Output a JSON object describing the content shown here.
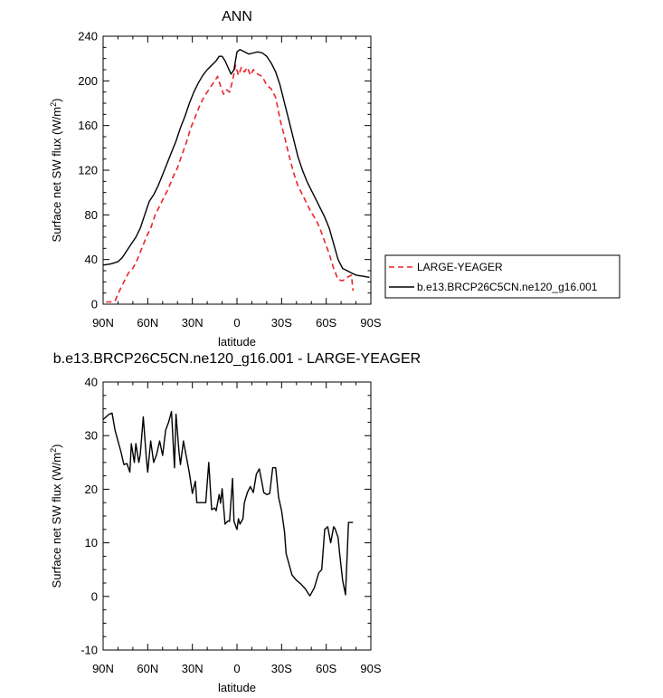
{
  "chart_data": [
    {
      "type": "line",
      "title": "ANN",
      "xlabel": "latitude",
      "ylabel": "Surface net SW flux (W/m",
      "ylabel_sup": "2",
      "ylabel_end": ")",
      "xlim": [
        90,
        -90
      ],
      "ylim": [
        0,
        240
      ],
      "xticks": [
        90,
        60,
        30,
        0,
        -30,
        -60,
        -90
      ],
      "xtick_labels": [
        "90N",
        "60N",
        "30N",
        "0",
        "30S",
        "60S",
        "90S"
      ],
      "yticks": [
        0,
        40,
        80,
        120,
        160,
        200,
        240
      ],
      "ytick_labels": [
        "0",
        "40",
        "80",
        "120",
        "160",
        "200",
        "240"
      ],
      "legend": [
        "LARGE-YEAGER",
        "b.e13.BRCP26C5CN.ne120_g16.001"
      ],
      "series": [
        {
          "name": "LARGE-YEAGER",
          "color": "#e8262a",
          "dash": true,
          "x": [
            88,
            85,
            82,
            79,
            76,
            73,
            70,
            67,
            64,
            61,
            58,
            55,
            52,
            49,
            46,
            43,
            40,
            37,
            34,
            31,
            28,
            25,
            22,
            19,
            16,
            13,
            11,
            9,
            7,
            5,
            3,
            1,
            -1,
            -3,
            -5,
            -7,
            -9,
            -11,
            -14,
            -17,
            -20,
            -23,
            -26,
            -29,
            -32,
            -35,
            -38,
            -41,
            -44,
            -47,
            -50,
            -53,
            -56,
            -59,
            -62,
            -65,
            -68,
            -71,
            -74,
            -77,
            -78
          ],
          "y": [
            2,
            2,
            3,
            12,
            20,
            28,
            32,
            40,
            50,
            60,
            68,
            80,
            88,
            96,
            104,
            114,
            122,
            134,
            145,
            158,
            168,
            178,
            186,
            192,
            198,
            204,
            195,
            188,
            192,
            190,
            200,
            214,
            205,
            212,
            208,
            212,
            205,
            210,
            206,
            204,
            196,
            193,
            185,
            165,
            150,
            133,
            118,
            106,
            98,
            90,
            82,
            76,
            67,
            56,
            45,
            32,
            22,
            21,
            24,
            26,
            12
          ]
        },
        {
          "name": "b.e13.BRCP26C5CN.ne120_g16.001",
          "color": "#000000",
          "dash": false,
          "x": [
            90,
            85,
            80,
            77,
            74,
            71,
            68,
            65,
            62,
            59,
            56,
            53,
            50,
            47,
            44,
            41,
            38,
            35,
            32,
            29,
            26,
            23,
            20,
            17,
            14,
            12,
            10,
            8,
            6,
            4,
            2,
            0,
            -2,
            -5,
            -8,
            -11,
            -14,
            -17,
            -20,
            -23,
            -26,
            -29,
            -32,
            -35,
            -38,
            -41,
            -44,
            -47,
            -50,
            -53,
            -56,
            -59,
            -62,
            -65,
            -68,
            -71,
            -74,
            -77,
            -80,
            -85,
            -89
          ],
          "y": [
            35,
            36,
            38,
            42,
            48,
            54,
            60,
            68,
            80,
            92,
            98,
            106,
            116,
            126,
            136,
            146,
            158,
            168,
            180,
            190,
            198,
            205,
            210,
            214,
            218,
            222,
            222,
            218,
            212,
            206,
            210,
            226,
            228,
            226,
            224,
            225,
            226,
            225,
            222,
            216,
            208,
            196,
            180,
            164,
            148,
            132,
            120,
            110,
            102,
            94,
            86,
            78,
            68,
            54,
            40,
            32,
            30,
            28,
            26,
            25,
            24
          ]
        }
      ]
    },
    {
      "type": "line",
      "title": "b.e13.BRCP26C5CN.ne120_g16.001 - LARGE-YEAGER",
      "xlabel": "latitude",
      "ylabel": "Surface net SW flux (W/m",
      "ylabel_sup": "2",
      "ylabel_end": ")",
      "xlim": [
        90,
        -90
      ],
      "ylim": [
        -10,
        40
      ],
      "xticks": [
        90,
        60,
        30,
        0,
        -30,
        -60,
        -90
      ],
      "xtick_labels": [
        "90N",
        "60N",
        "30N",
        "0",
        "30S",
        "60S",
        "90S"
      ],
      "yticks": [
        -10,
        0,
        10,
        20,
        30,
        40
      ],
      "ytick_labels": [
        "-10",
        "0",
        "10",
        "20",
        "30",
        "40"
      ],
      "series": [
        {
          "name": "b.e13.BRCP26C5CN.ne120_g16.001 - LARGE-YEAGER",
          "color": "#000000",
          "dash": false,
          "x": [
            90,
            88,
            86,
            84,
            82,
            80,
            78,
            76,
            74,
            72,
            71,
            69,
            68,
            66,
            65,
            63,
            61,
            60,
            58,
            56,
            54,
            52,
            50,
            48,
            46,
            44,
            42,
            41,
            39,
            38,
            36,
            34,
            32,
            30,
            28,
            27,
            25,
            23,
            21,
            19,
            17,
            15,
            14,
            12,
            11,
            10,
            8,
            6,
            5,
            3,
            2,
            0,
            -1,
            -2,
            -4,
            -5,
            -7,
            -9,
            -11,
            -13,
            -15,
            -17,
            -18,
            -20,
            -22,
            -24,
            -26,
            -28,
            -30,
            -32,
            -33,
            -35,
            -37,
            -40,
            -43,
            -46,
            -49,
            -52,
            -55,
            -57,
            -59,
            -61,
            -63,
            -65,
            -66,
            -68,
            -69,
            -71,
            -73,
            -75,
            -77,
            -78
          ],
          "y": [
            33,
            33.5,
            34,
            34.2,
            31,
            29,
            27,
            24.6,
            24.8,
            23.2,
            28.5,
            25,
            28.5,
            25,
            26.5,
            33.5,
            26,
            23.2,
            29,
            25,
            26.5,
            29,
            26.3,
            31,
            32.5,
            34.5,
            24,
            34,
            27,
            24.6,
            29,
            26,
            23,
            19.2,
            21.5,
            17.5,
            17.5,
            17.5,
            17.5,
            25,
            16.2,
            16.5,
            16,
            19,
            17.4,
            20.1,
            13.5,
            14.1,
            14,
            22,
            14,
            12.5,
            14.5,
            13.5,
            14.5,
            17.5,
            19.4,
            20.5,
            19.4,
            22.8,
            23.8,
            20.9,
            19.4,
            19,
            19.2,
            24,
            24,
            18.5,
            16,
            12,
            8,
            6,
            4,
            3,
            2.3,
            1.4,
            0.1,
            1.6,
            4.4,
            5,
            12.5,
            13,
            10,
            13,
            12.6,
            11,
            8,
            3,
            0.3,
            13.8,
            13.8,
            13.8
          ]
        }
      ]
    }
  ]
}
